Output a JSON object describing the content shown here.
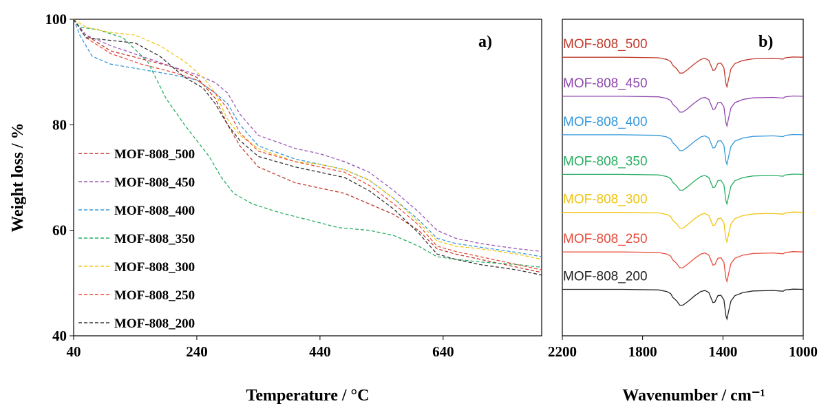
{
  "chart_data": [
    {
      "type": "line",
      "panel_label": "a)",
      "xlabel": "Temperature / °C",
      "ylabel": "Weight loss / %",
      "xlim": [
        40,
        800
      ],
      "ylim": [
        40,
        100
      ],
      "xticks": [
        40,
        240,
        440,
        640
      ],
      "yticks": [
        40,
        60,
        80,
        100
      ],
      "legend_position": "left-middle",
      "line_style": "dashed",
      "series": [
        {
          "name": "MOF-808_500",
          "color": "#c0392b",
          "points": [
            [
              40,
              100
            ],
            [
              60,
              97
            ],
            [
              100,
              94
            ],
            [
              150,
              92.5
            ],
            [
              200,
              91
            ],
            [
              240,
              89
            ],
            [
              270,
              85
            ],
            [
              290,
              80
            ],
            [
              310,
              76
            ],
            [
              340,
              72
            ],
            [
              400,
              69
            ],
            [
              440,
              68
            ],
            [
              480,
              67
            ],
            [
              520,
              65
            ],
            [
              560,
              63
            ],
            [
              600,
              60
            ],
            [
              630,
              56.5
            ],
            [
              660,
              55.5
            ],
            [
              700,
              54.5
            ],
            [
              760,
              53
            ],
            [
              800,
              52
            ]
          ]
        },
        {
          "name": "MOF-808_450",
          "color": "#9b59b6",
          "points": [
            [
              40,
              100
            ],
            [
              60,
              97
            ],
            [
              100,
              95
            ],
            [
              150,
              93
            ],
            [
              200,
              91
            ],
            [
              240,
              89.5
            ],
            [
              270,
              88
            ],
            [
              290,
              86
            ],
            [
              310,
              82
            ],
            [
              340,
              78
            ],
            [
              400,
              75.5
            ],
            [
              440,
              74.5
            ],
            [
              480,
              73
            ],
            [
              520,
              71
            ],
            [
              560,
              67.5
            ],
            [
              600,
              63.5
            ],
            [
              630,
              60
            ],
            [
              660,
              58.5
            ],
            [
              700,
              57.5
            ],
            [
              760,
              56.5
            ],
            [
              800,
              56
            ]
          ]
        },
        {
          "name": "MOF-808_400",
          "color": "#3498db",
          "points": [
            [
              40,
              100
            ],
            [
              50,
              97
            ],
            [
              70,
              93
            ],
            [
              100,
              91.5
            ],
            [
              150,
              90.5
            ],
            [
              200,
              89.5
            ],
            [
              240,
              88.5
            ],
            [
              270,
              86
            ],
            [
              290,
              84
            ],
            [
              310,
              80
            ],
            [
              340,
              76
            ],
            [
              400,
              73.5
            ],
            [
              440,
              72.5
            ],
            [
              480,
              71.5
            ],
            [
              520,
              69.5
            ],
            [
              560,
              66
            ],
            [
              600,
              62
            ],
            [
              630,
              58.5
            ],
            [
              660,
              57.5
            ],
            [
              700,
              56.8
            ],
            [
              760,
              55.8
            ],
            [
              800,
              55
            ]
          ]
        },
        {
          "name": "MOF-808_350",
          "color": "#27ae60",
          "points": [
            [
              40,
              100
            ],
            [
              50,
              98.5
            ],
            [
              80,
              98
            ],
            [
              120,
              96.5
            ],
            [
              160,
              92
            ],
            [
              190,
              85
            ],
            [
              220,
              80
            ],
            [
              240,
              77
            ],
            [
              260,
              74
            ],
            [
              280,
              70
            ],
            [
              300,
              67
            ],
            [
              330,
              65
            ],
            [
              370,
              63.5
            ],
            [
              420,
              62
            ],
            [
              470,
              60.5
            ],
            [
              520,
              60
            ],
            [
              560,
              59
            ],
            [
              600,
              57
            ],
            [
              630,
              55
            ],
            [
              660,
              54.5
            ],
            [
              700,
              54
            ],
            [
              760,
              53.5
            ],
            [
              800,
              53
            ]
          ]
        },
        {
          "name": "MOF-808_300",
          "color": "#f1c40f",
          "points": [
            [
              40,
              100
            ],
            [
              60,
              98.5
            ],
            [
              100,
              97.5
            ],
            [
              140,
              97
            ],
            [
              180,
              95
            ],
            [
              220,
              92
            ],
            [
              250,
              89
            ],
            [
              270,
              86
            ],
            [
              290,
              81
            ],
            [
              310,
              78
            ],
            [
              340,
              75.5
            ],
            [
              400,
              73
            ],
            [
              440,
              72.5
            ],
            [
              480,
              71.5
            ],
            [
              520,
              69.5
            ],
            [
              560,
              66
            ],
            [
              600,
              61.5
            ],
            [
              630,
              58
            ],
            [
              660,
              57
            ],
            [
              700,
              56.5
            ],
            [
              760,
              55.5
            ],
            [
              800,
              54.5
            ]
          ]
        },
        {
          "name": "MOF-808_250",
          "color": "#e74c3c",
          "points": [
            [
              40,
              100
            ],
            [
              60,
              96.5
            ],
            [
              100,
              93.5
            ],
            [
              150,
              91.5
            ],
            [
              200,
              90
            ],
            [
              240,
              88.5
            ],
            [
              270,
              86
            ],
            [
              290,
              83
            ],
            [
              310,
              78.5
            ],
            [
              340,
              75
            ],
            [
              400,
              73
            ],
            [
              440,
              72
            ],
            [
              480,
              71
            ],
            [
              520,
              68.5
            ],
            [
              560,
              65
            ],
            [
              600,
              61
            ],
            [
              630,
              57
            ],
            [
              660,
              56
            ],
            [
              700,
              55
            ],
            [
              760,
              53.5
            ],
            [
              800,
              52.5
            ]
          ]
        },
        {
          "name": "MOF-808_200",
          "color": "#333333",
          "points": [
            [
              40,
              100
            ],
            [
              60,
              96.5
            ],
            [
              100,
              96
            ],
            [
              140,
              95.5
            ],
            [
              180,
              93
            ],
            [
              220,
              89
            ],
            [
              250,
              87
            ],
            [
              270,
              84
            ],
            [
              290,
              80
            ],
            [
              310,
              77
            ],
            [
              340,
              74
            ],
            [
              400,
              72
            ],
            [
              440,
              71
            ],
            [
              480,
              70
            ],
            [
              520,
              67.5
            ],
            [
              560,
              64
            ],
            [
              600,
              59.5
            ],
            [
              630,
              55.5
            ],
            [
              660,
              54.5
            ],
            [
              700,
              53.5
            ],
            [
              760,
              52.5
            ],
            [
              800,
              51.5
            ]
          ]
        }
      ]
    },
    {
      "type": "line",
      "panel_label": "b)",
      "xlabel": "Wavenumber  / cm⁻¹",
      "xlim": [
        2200,
        1000
      ],
      "x_reversed": true,
      "xticks": [
        2200,
        1800,
        1400,
        1000
      ],
      "series": [
        {
          "name": "MOF-808_500",
          "color": "#c0392b",
          "baseline": 92.8
        },
        {
          "name": "MOF-808_450",
          "color": "#8e44ad",
          "baseline": 85.4
        },
        {
          "name": "MOF-808_400",
          "color": "#3498db",
          "baseline": 78.1
        },
        {
          "name": "MOF-808_350",
          "color": "#27ae60",
          "baseline": 70.6
        },
        {
          "name": "MOF-808_300",
          "color": "#f1c40f",
          "baseline": 63.4
        },
        {
          "name": "MOF-808_250",
          "color": "#e74c3c",
          "baseline": 55.9
        },
        {
          "name": "MOF-808_200",
          "color": "#222222",
          "baseline": 48.8
        }
      ]
    }
  ]
}
